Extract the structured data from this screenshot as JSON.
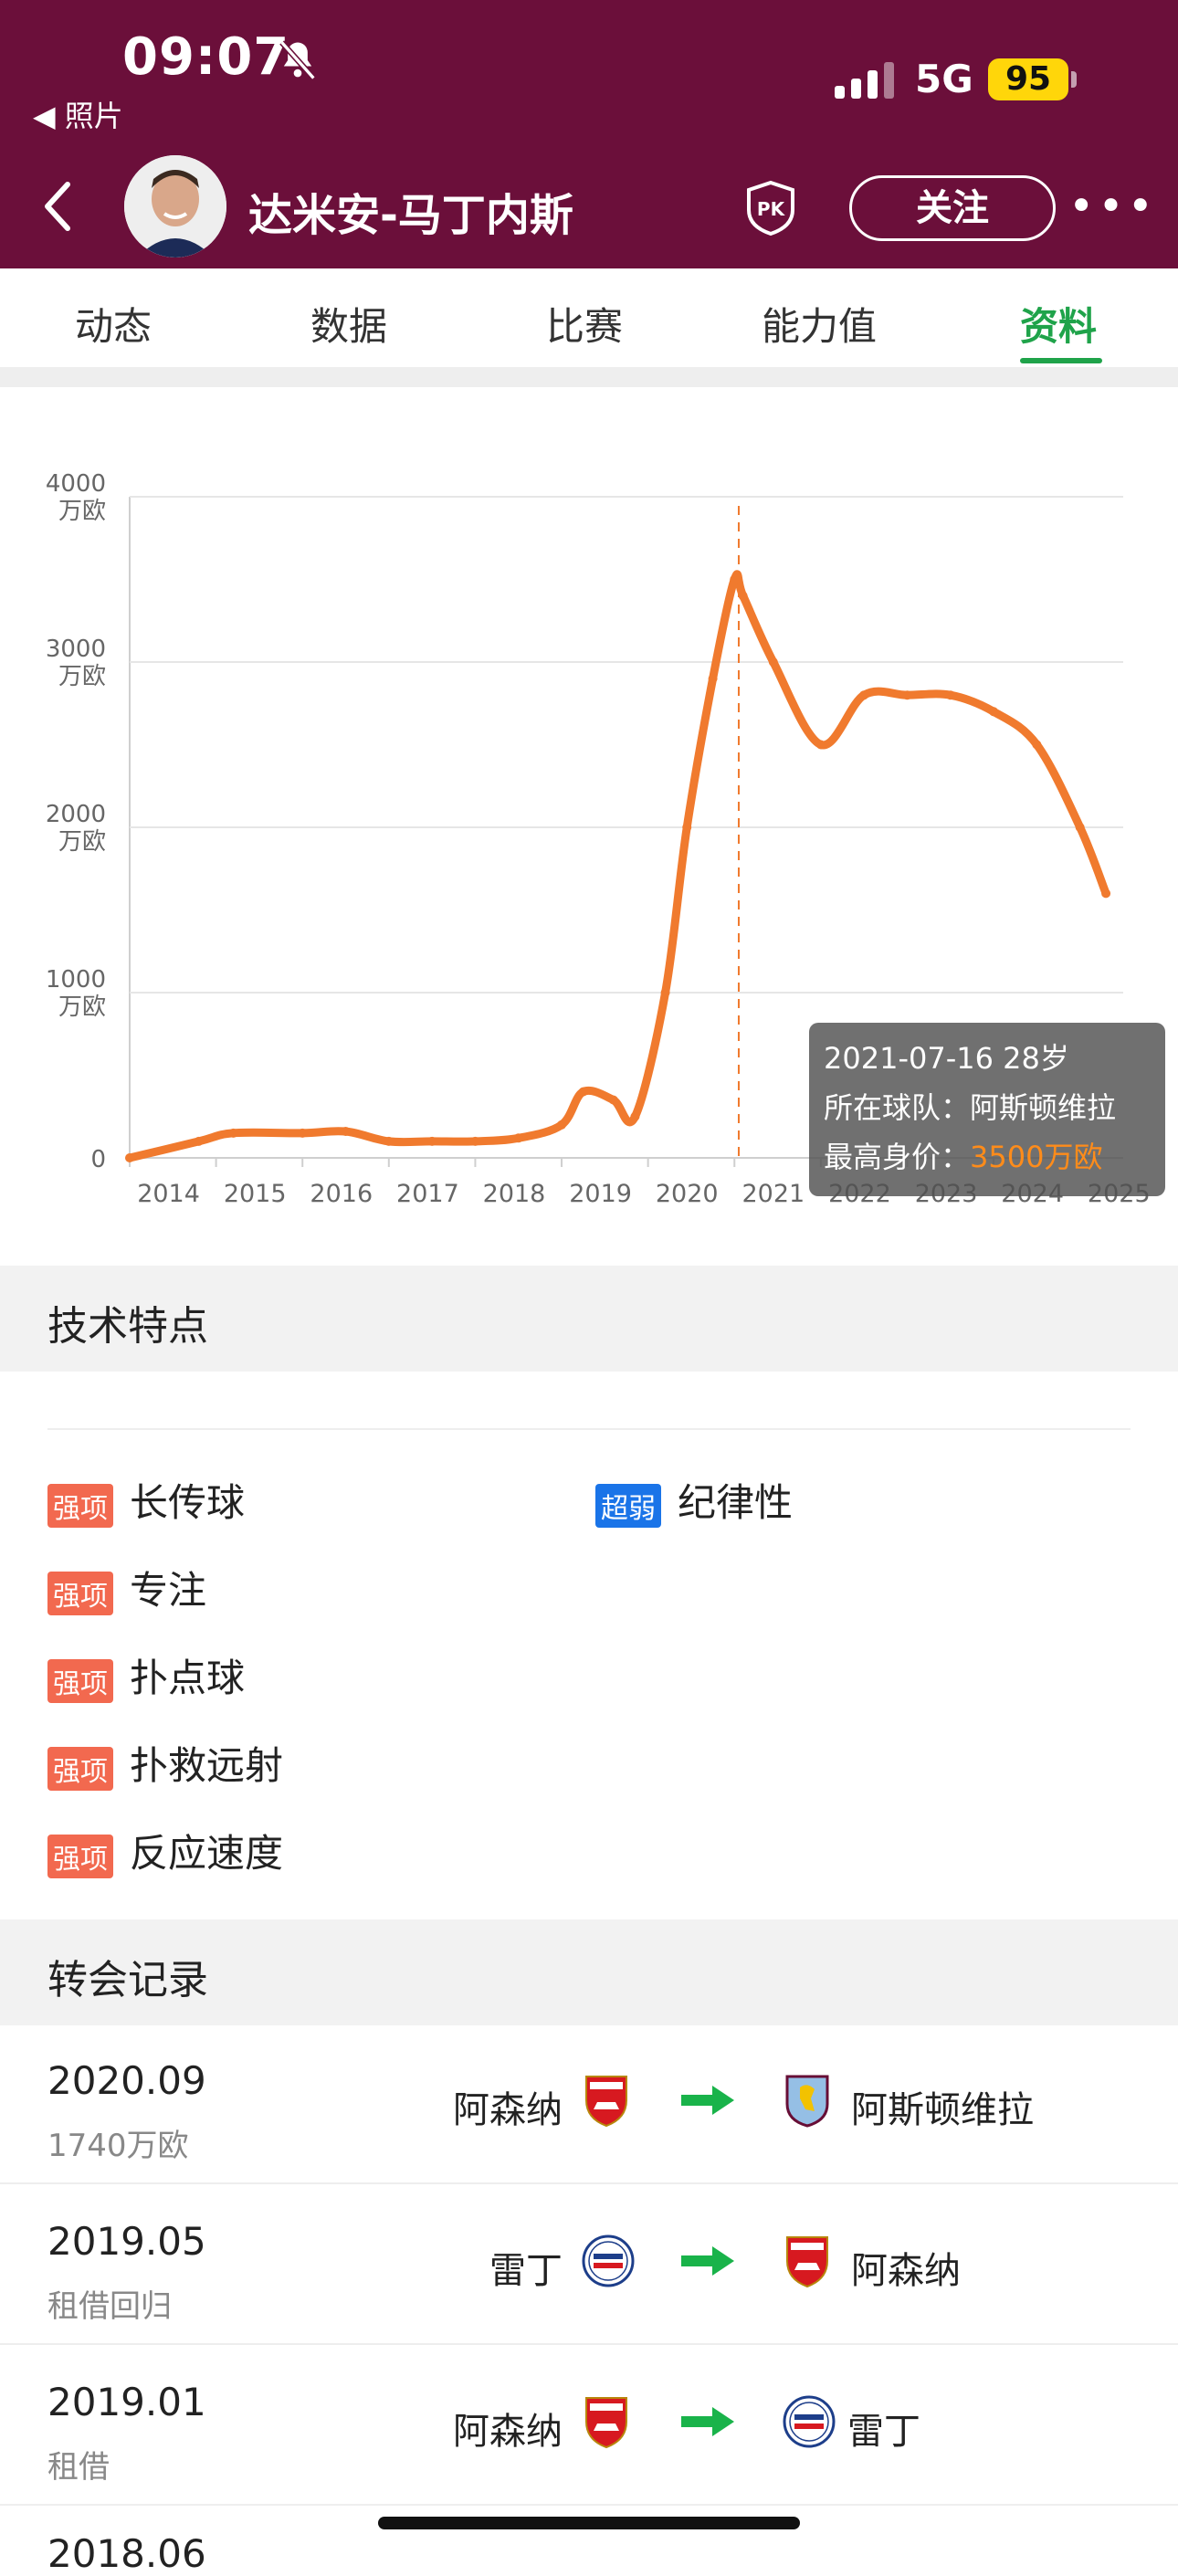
{
  "status_bar": {
    "time": "09:07",
    "back_app": "◀ 照片",
    "network": "5G",
    "battery": "95"
  },
  "header": {
    "player_name": "达米安-马丁内斯",
    "pk_label": "PK",
    "follow_label": "关注",
    "more_label": "•••"
  },
  "tabs": [
    {
      "label": "动态"
    },
    {
      "label": "数据"
    },
    {
      "label": "比赛"
    },
    {
      "label": "能力值"
    },
    {
      "label": "资料",
      "active": true
    }
  ],
  "chart_data": {
    "type": "line",
    "x_labels": [
      "2014",
      "2015",
      "2016",
      "2017",
      "2018",
      "2019",
      "2020",
      "2021",
      "2022",
      "2023",
      "2024",
      "2025"
    ],
    "y_ticks": [
      {
        "value": "4000",
        "unit": "万欧"
      },
      {
        "value": "3000",
        "unit": "万欧"
      },
      {
        "value": "2000",
        "unit": "万欧"
      },
      {
        "value": "1000",
        "unit": "万欧"
      },
      {
        "value": "0",
        "unit": ""
      }
    ],
    "ylim": [
      0,
      4000
    ],
    "series": [
      {
        "x": [
          2014.0,
          2014.8,
          2015.2,
          2016.0,
          2016.5,
          2017.0,
          2017.5,
          2018.0,
          2018.5,
          2019.0,
          2019.25,
          2019.6,
          2019.85,
          2020.2,
          2020.45,
          2020.75,
          2021.0,
          2021.1,
          2021.45,
          2022.0,
          2022.5,
          2023.0,
          2023.5,
          2024.0,
          2024.5,
          2025.0,
          2025.3
        ],
        "y": [
          0,
          100,
          150,
          150,
          160,
          100,
          100,
          100,
          120,
          200,
          400,
          350,
          250,
          1000,
          2000,
          2900,
          3500,
          3400,
          3000,
          2500,
          2800,
          2800,
          2800,
          2700,
          2500,
          2000,
          1600
        ]
      }
    ],
    "tooltip": {
      "date": "2021-07-16",
      "age": "28岁",
      "team_label": "所在球队：",
      "team": "阿斯顿维拉",
      "value_label": "最高身价：",
      "value": "3500万欧"
    },
    "marker_line_x": 2021.0,
    "grid": true,
    "colors": {
      "line": "#f07a2e",
      "grid": "#e6e6e6"
    }
  },
  "tech": {
    "title": "技术特点",
    "strengths": [
      {
        "badge": "强项",
        "text": "长传球"
      },
      {
        "badge": "强项",
        "text": "专注"
      },
      {
        "badge": "强项",
        "text": "扑点球"
      },
      {
        "badge": "强项",
        "text": "扑救远射"
      },
      {
        "badge": "强项",
        "text": "反应速度"
      }
    ],
    "weaknesses": [
      {
        "badge": "超弱",
        "text": "纪律性"
      }
    ]
  },
  "transfers": {
    "title": "转会记录",
    "rows": [
      {
        "date": "2020.09",
        "sub": "1740万欧",
        "from": "阿森纳",
        "to": "阿斯顿维拉",
        "from_crest": "arsenal",
        "to_crest": "villa"
      },
      {
        "date": "2019.05",
        "sub": "租借回归",
        "from": "雷丁",
        "to": "阿森纳",
        "from_crest": "reading",
        "to_crest": "arsenal"
      },
      {
        "date": "2019.01",
        "sub": "租借",
        "from": "阿森纳",
        "to": "雷丁",
        "from_crest": "arsenal",
        "to_crest": "reading"
      }
    ],
    "next_date": "2018.06"
  },
  "colors": {
    "header_bg": "#6b0f3a",
    "accent_green": "#1fa34a",
    "strong_badge": "#f2694f",
    "weak_badge": "#1a74e8",
    "line_orange": "#f07a2e"
  }
}
